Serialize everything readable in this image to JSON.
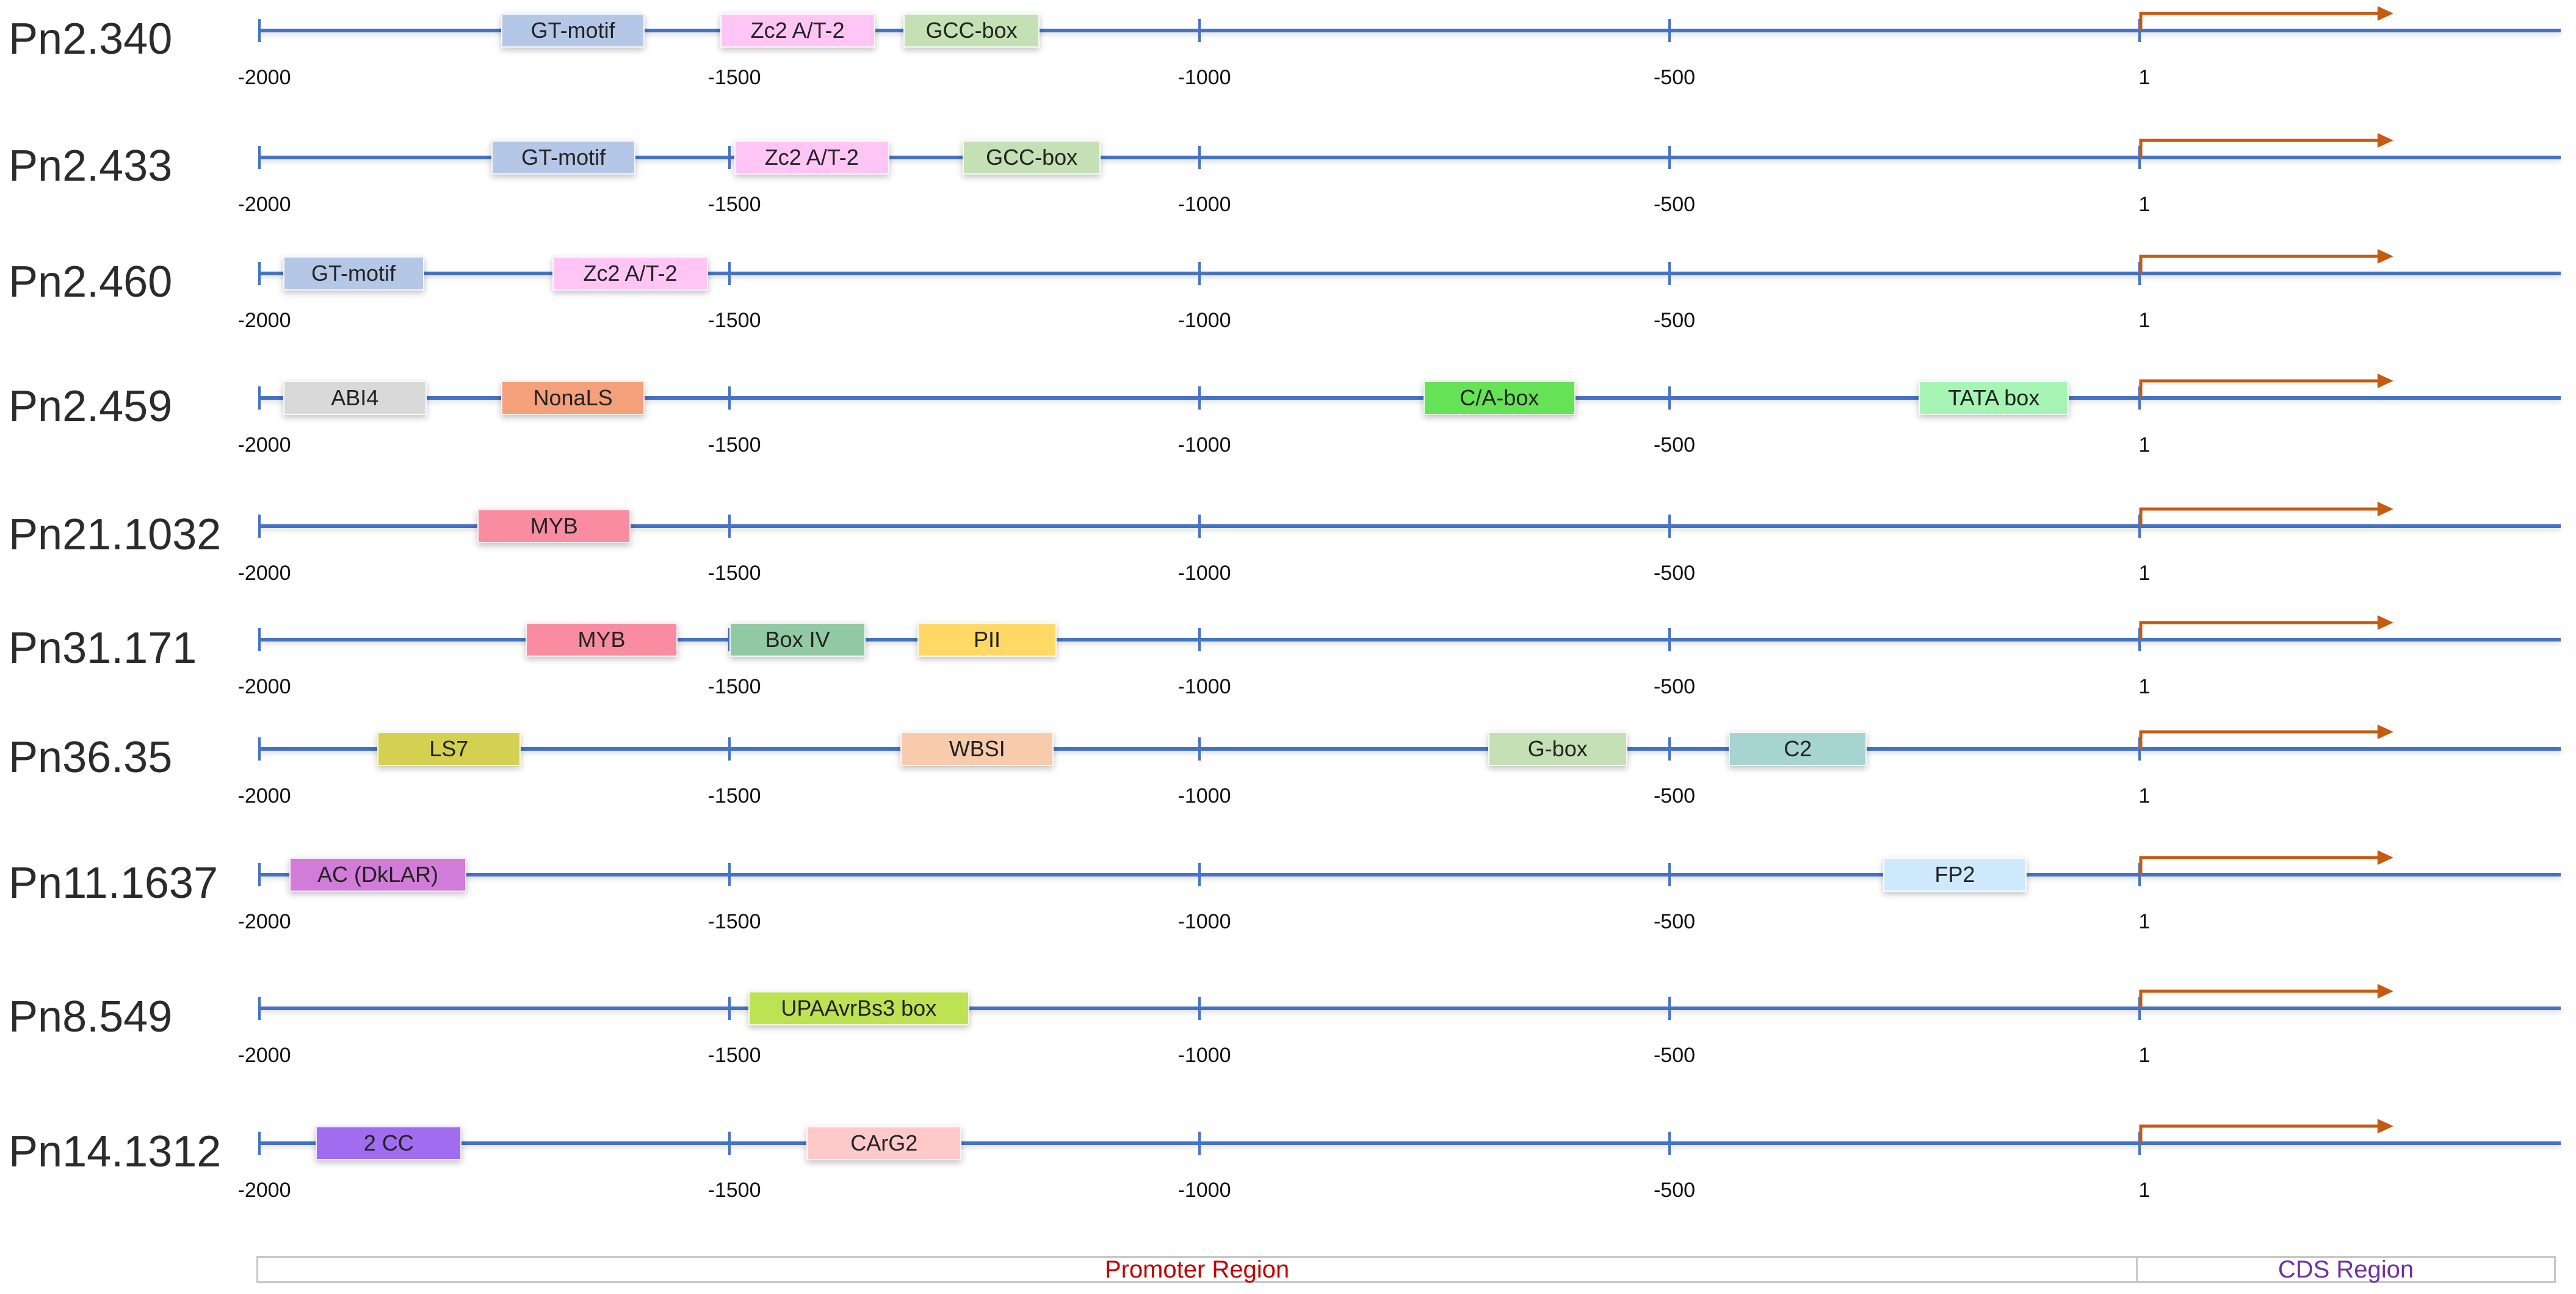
{
  "axis": {
    "domain": [
      -2000,
      700
    ],
    "ticks": [
      {
        "pos": -2000,
        "label": "-2000"
      },
      {
        "pos": -1500,
        "label": "-1500"
      },
      {
        "pos": -1000,
        "label": "-1000"
      },
      {
        "pos": -500,
        "label": "-500"
      },
      {
        "pos": 0,
        "label": "1"
      }
    ],
    "tss_position": 0,
    "tss_arrow_end": 270
  },
  "colors": {
    "line": "#4472c4",
    "arrow": "#c55a11",
    "promoter_label": "#c00000",
    "cds_label": "#7030a0"
  },
  "tracks": [
    {
      "name": "Pn2.340",
      "elements": [
        {
          "label": "GT-motif",
          "start": -1743,
          "end": -1590,
          "color": "#b4c7e7"
        },
        {
          "label": "Zc2 A/T-2",
          "start": -1510,
          "end": -1345,
          "color": "#ffc6f5"
        },
        {
          "label": "GCC-box",
          "start": -1315,
          "end": -1170,
          "color": "#c5e0b4"
        }
      ]
    },
    {
      "name": "Pn2.433",
      "elements": [
        {
          "label": "GT-motif",
          "start": -1753,
          "end": -1600,
          "color": "#b4c7e7"
        },
        {
          "label": "Zc2 A/T-2",
          "start": -1495,
          "end": -1330,
          "color": "#ffc6f5"
        },
        {
          "label": "GCC-box",
          "start": -1252,
          "end": -1105,
          "color": "#c5e0b4"
        }
      ]
    },
    {
      "name": "Pn2.460",
      "elements": [
        {
          "label": "GT-motif",
          "start": -1975,
          "end": -1825,
          "color": "#b4c7e7"
        },
        {
          "label": "Zc2 A/T-2",
          "start": -1688,
          "end": -1523,
          "color": "#ffc6f5"
        }
      ]
    },
    {
      "name": "Pn2.459",
      "elements": [
        {
          "label": "ABI4",
          "start": -1975,
          "end": -1822,
          "color": "#d9d9d9"
        },
        {
          "label": "NonaLS",
          "start": -1743,
          "end": -1590,
          "color": "#f4a07a"
        },
        {
          "label": "C/A-box",
          "start": -762,
          "end": -600,
          "color": "#66e257"
        },
        {
          "label": "TATA box",
          "start": -235,
          "end": -75,
          "color": "#a6f5b5"
        }
      ]
    },
    {
      "name": "Pn21.1032",
      "elements": [
        {
          "label": "MYB",
          "start": -1768,
          "end": -1605,
          "color": "#fa8ca2"
        }
      ]
    },
    {
      "name": "Pn31.171",
      "elements": [
        {
          "label": "MYB",
          "start": -1717,
          "end": -1555,
          "color": "#fa8ca2"
        },
        {
          "label": "Box IV",
          "start": -1500,
          "end": -1355,
          "color": "#92c9a5"
        },
        {
          "label": "PII",
          "start": -1300,
          "end": -1152,
          "color": "#ffd966"
        }
      ]
    },
    {
      "name": "Pn36.35",
      "elements": [
        {
          "label": "LS7",
          "start": -1875,
          "end": -1722,
          "color": "#d4d152"
        },
        {
          "label": "WBSI",
          "start": -1318,
          "end": -1155,
          "color": "#f8cbad"
        },
        {
          "label": "G-box",
          "start": -693,
          "end": -545,
          "color": "#c5e0b4"
        },
        {
          "label": "C2",
          "start": -437,
          "end": -290,
          "color": "#a6d4d0"
        }
      ]
    },
    {
      "name": "Pn11.1637",
      "elements": [
        {
          "label": "AC (DkLAR)",
          "start": -1968,
          "end": -1780,
          "color": "#d17cd8"
        },
        {
          "label": "FP2",
          "start": -273,
          "end": -120,
          "color": "#cde9fb"
        }
      ]
    },
    {
      "name": "Pn8.549",
      "elements": [
        {
          "label": "UPAAvrBs3 box",
          "start": -1480,
          "end": -1245,
          "color": "#bde253"
        }
      ]
    },
    {
      "name": "Pn14.1312",
      "elements": [
        {
          "label": "2 CC",
          "start": -1940,
          "end": -1785,
          "color": "#a06cf0"
        },
        {
          "label": "CArG2",
          "start": -1418,
          "end": -1253,
          "color": "#ffc9c9"
        }
      ]
    }
  ],
  "regions": {
    "promoter": "Promoter Region",
    "cds": "CDS Region"
  }
}
